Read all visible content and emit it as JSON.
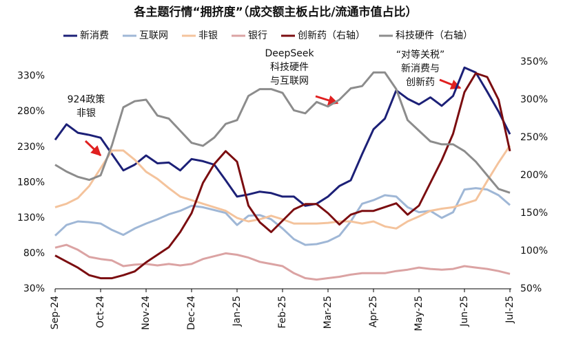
{
  "chart_data": {
    "type": "line",
    "title": "各主题行情“拥挤度”（成交额主板占比/流通市值占比）",
    "x": [
      0,
      0.25,
      0.5,
      0.75,
      1,
      1.25,
      1.5,
      1.75,
      2,
      2.25,
      2.5,
      2.75,
      3,
      3.25,
      3.5,
      3.75,
      4,
      4.25,
      4.5,
      4.75,
      5,
      5.25,
      5.5,
      5.75,
      6,
      6.25,
      6.5,
      6.75,
      7,
      7.25,
      7.5,
      7.75,
      8,
      8.25,
      8.5,
      8.75,
      9,
      9.25,
      9.5,
      9.75,
      10
    ],
    "xlim": [
      0,
      10
    ],
    "xticks": [
      {
        "value": 0,
        "label": "Sep-24"
      },
      {
        "value": 1,
        "label": "Oct-24"
      },
      {
        "value": 2,
        "label": "Nov-24"
      },
      {
        "value": 3,
        "label": "Dec-24"
      },
      {
        "value": 4,
        "label": "Jan-25"
      },
      {
        "value": 5,
        "label": "Feb-25"
      },
      {
        "value": 6,
        "label": "Mar-25"
      },
      {
        "value": 7,
        "label": "Apr-25"
      },
      {
        "value": 8,
        "label": "May-25"
      },
      {
        "value": 9,
        "label": "Jun-25"
      },
      {
        "value": 10,
        "label": "Jul-25"
      }
    ],
    "ylim": [
      30,
      350
    ],
    "yticks": [
      {
        "value": 30,
        "label": "30%"
      },
      {
        "value": 80,
        "label": "80%"
      },
      {
        "value": 130,
        "label": "130%"
      },
      {
        "value": 180,
        "label": "180%"
      },
      {
        "value": 230,
        "label": "230%"
      },
      {
        "value": 280,
        "label": "280%"
      },
      {
        "value": 330,
        "label": "330%"
      }
    ],
    "y2lim": [
      50,
      350
    ],
    "y2ticks": [
      {
        "value": 50,
        "label": "50%"
      },
      {
        "value": 100,
        "label": "100%"
      },
      {
        "value": 150,
        "label": "150%"
      },
      {
        "value": 200,
        "label": "200%"
      },
      {
        "value": 250,
        "label": "250%"
      },
      {
        "value": 300,
        "label": "300%"
      },
      {
        "value": 350,
        "label": "350%"
      }
    ],
    "grid": false,
    "series": [
      {
        "name": "新消费",
        "color": "#1c2077",
        "values": [
          240,
          262,
          250,
          247,
          243,
          220,
          197,
          205,
          218,
          207,
          208,
          197,
          213,
          210,
          205,
          183,
          160,
          163,
          167,
          165,
          160,
          160,
          147,
          150,
          160,
          175,
          183,
          220,
          255,
          270,
          310,
          298,
          290,
          300,
          288,
          302,
          342,
          335,
          308,
          280,
          248
        ]
      },
      {
        "name": "互联网",
        "color": "#9fb7d6",
        "values": [
          105,
          120,
          125,
          124,
          122,
          113,
          106,
          115,
          122,
          128,
          135,
          140,
          147,
          145,
          141,
          137,
          120,
          133,
          134,
          128,
          115,
          100,
          92,
          93,
          97,
          105,
          125,
          150,
          155,
          162,
          160,
          145,
          138,
          140,
          130,
          138,
          170,
          172,
          170,
          162,
          148
        ]
      },
      {
        "name": "非银",
        "color": "#f4c39c",
        "values": [
          145,
          150,
          158,
          175,
          200,
          225,
          225,
          212,
          195,
          185,
          172,
          160,
          155,
          150,
          145,
          140,
          130,
          125,
          128,
          133,
          128,
          122,
          122,
          122,
          123,
          125,
          125,
          122,
          125,
          118,
          115,
          125,
          132,
          140,
          143,
          145,
          150,
          155,
          182,
          208,
          232
        ]
      },
      {
        "name": "银行",
        "color": "#dba3a3",
        "values": [
          88,
          92,
          85,
          75,
          72,
          70,
          62,
          64,
          65,
          63,
          65,
          63,
          65,
          72,
          76,
          80,
          78,
          74,
          68,
          65,
          62,
          52,
          45,
          43,
          45,
          47,
          50,
          52,
          52,
          52,
          55,
          57,
          60,
          58,
          57,
          58,
          62,
          60,
          58,
          55,
          51
        ]
      },
      {
        "name": "创新药（右轴）",
        "color": "#7b0d10",
        "axis": "y2",
        "values": [
          94,
          86,
          78,
          68,
          64,
          64,
          68,
          73,
          85,
          95,
          105,
          125,
          150,
          190,
          215,
          232,
          218,
          160,
          138,
          125,
          140,
          155,
          162,
          162,
          150,
          135,
          148,
          153,
          153,
          158,
          163,
          148,
          160,
          190,
          220,
          255,
          310,
          335,
          330,
          300,
          232
        ]
      },
      {
        "name": "科技硬件（右轴）",
        "color": "#8c8c8c",
        "axis": "y2",
        "values": [
          214,
          205,
          198,
          194,
          200,
          240,
          290,
          298,
          300,
          279,
          275,
          259,
          243,
          239,
          250,
          268,
          273,
          305,
          314,
          314,
          309,
          286,
          282,
          297,
          291,
          300,
          315,
          318,
          336,
          336,
          314,
          273,
          259,
          245,
          241,
          241,
          232,
          218,
          200,
          182,
          177
        ]
      }
    ],
    "annotations": [
      {
        "lines": [
          "924政策",
          "非银"
        ]
      },
      {
        "lines": [
          "DeepSeek",
          "科技硬件",
          "与互联网"
        ]
      },
      {
        "lines": [
          "“对等关税”",
          "新消费与",
          "创新药"
        ]
      }
    ]
  }
}
